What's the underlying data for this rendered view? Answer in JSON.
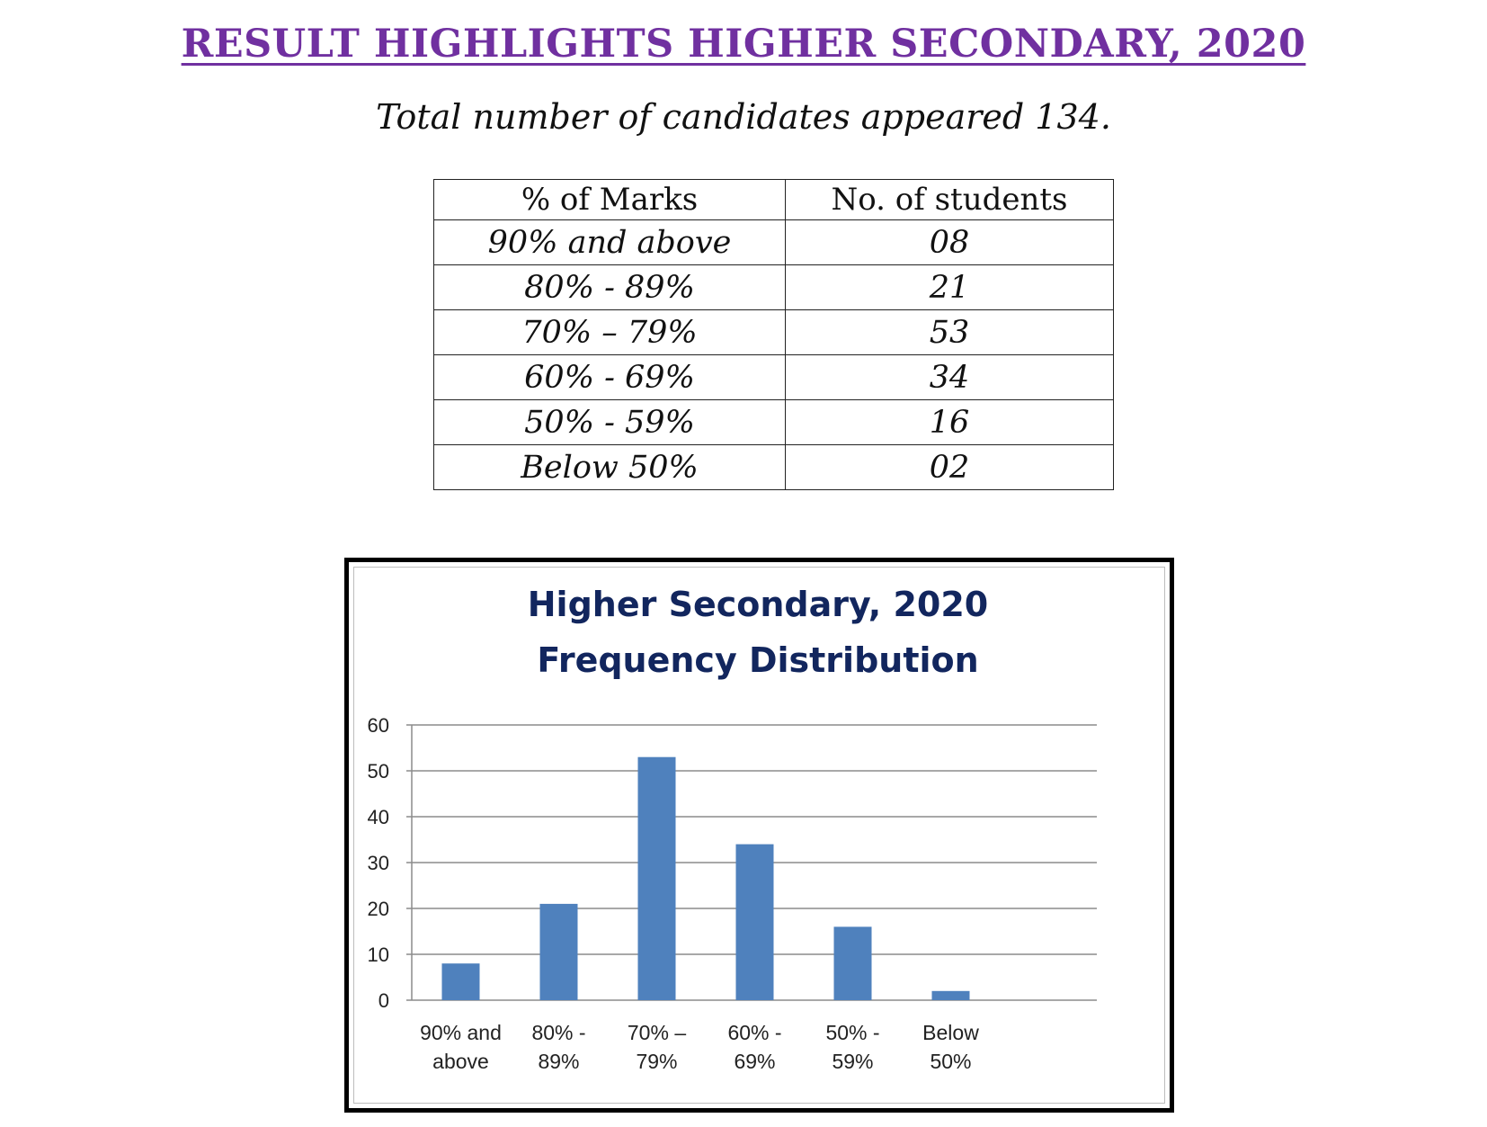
{
  "header": {
    "title": "RESULT HIGHLIGHTS HIGHER SECONDARY, 2020",
    "subtitle": "Total number of candidates appeared 134."
  },
  "table": {
    "headers": [
      "% of Marks",
      "No. of students"
    ],
    "rows": [
      [
        "90% and above",
        "08"
      ],
      [
        "80% - 89%",
        "21"
      ],
      [
        "70% – 79%",
        "53"
      ],
      [
        "60% - 69%",
        "34"
      ],
      [
        "50% - 59%",
        "16"
      ],
      [
        "Below 50%",
        "02"
      ]
    ]
  },
  "chart_data": {
    "type": "bar",
    "title": [
      "Higher Secondary, 2020",
      "Frequency Distribution"
    ],
    "categories": [
      [
        "90% and",
        "above"
      ],
      [
        "80% -",
        "89%"
      ],
      [
        "70% –",
        "79%"
      ],
      [
        "60% -",
        "69%"
      ],
      [
        "50% -",
        "59%"
      ],
      [
        "Below",
        "50%"
      ]
    ],
    "values": [
      8,
      21,
      53,
      34,
      16,
      2
    ],
    "ylim": [
      0,
      60
    ],
    "yticks": [
      0,
      10,
      20,
      30,
      40,
      50,
      60
    ],
    "grid": true,
    "legend": "none",
    "bar_color": "#4f81bd"
  }
}
